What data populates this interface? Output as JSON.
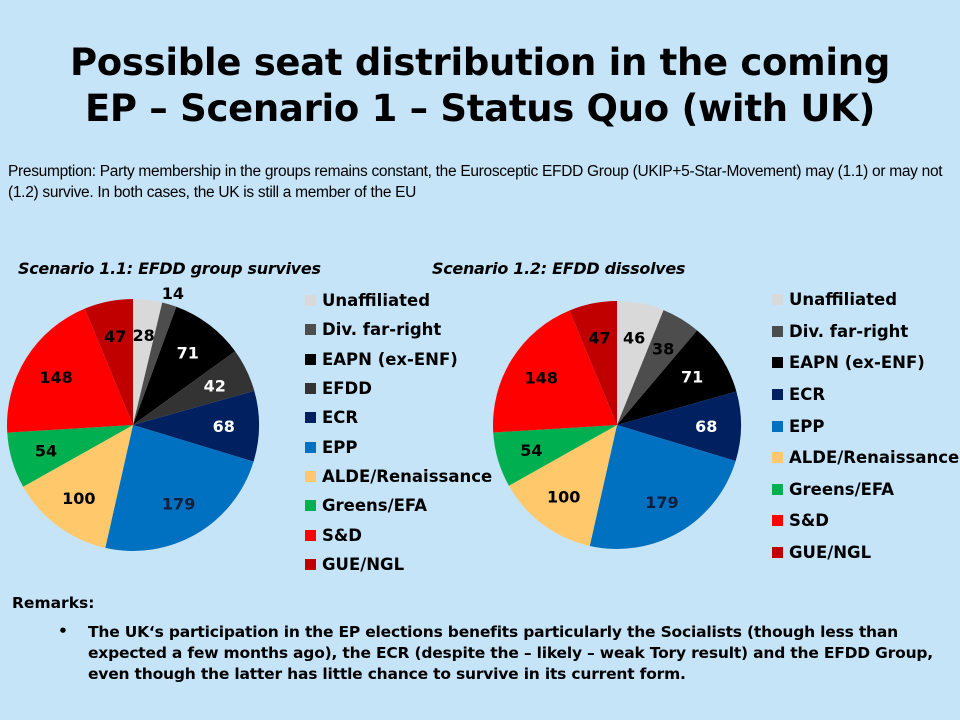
{
  "title": [
    "Possible seat distribution in the coming",
    "EP – Scenario 1 – Status Quo (with UK)"
  ],
  "presumption": "Presumption: Party membership in the groups remains constant, the Eurosceptic EFDD Group (UKIP+5-Star-Movement) may (1.1) or may not (1.2) survive. In both cases, the UK is still a member of the EU",
  "remarks": {
    "heading": "Remarks:",
    "bullet": "•",
    "text": "The UK‘s participation in the EP elections benefits particularly the Socialists (though less than expected a few months ago), the ECR (despite the – likely – weak Tory result) and the EFDD Group, even though the latter has little chance to survive in its current form."
  },
  "chart_data": [
    {
      "type": "pie",
      "title": "Scenario 1.1: EFDD group survives",
      "legend_position": "right",
      "start": "12 o'clock, clockwise",
      "slices": [
        {
          "label": "Unaffiliated",
          "value": 28,
          "color": "#d9d9d9",
          "text_color": "#000000"
        },
        {
          "label": "Div. far-right",
          "value": 14,
          "color": "#4d4d4d",
          "text_color": "#000000"
        },
        {
          "label": "EAPN (ex-ENF)",
          "value": 71,
          "color": "#000000",
          "text_color": "#ffffff"
        },
        {
          "label": "EFDD",
          "value": 42,
          "color": "#333333",
          "text_color": "#ffffff"
        },
        {
          "label": "ECR",
          "value": 68,
          "color": "#002060",
          "text_color": "#ffffff"
        },
        {
          "label": "EPP",
          "value": 179,
          "color": "#0070c0",
          "text_color": "#0d1f3a"
        },
        {
          "label": "ALDE/Renaissance",
          "value": 100,
          "color": "#ffc96b",
          "text_color": "#000000"
        },
        {
          "label": "Greens/EFA",
          "value": 54,
          "color": "#00b050",
          "text_color": "#000000"
        },
        {
          "label": "S&D",
          "value": 148,
          "color": "#ff0000",
          "text_color": "#000000"
        },
        {
          "label": "GUE/NGL",
          "value": 47,
          "color": "#c00000",
          "text_color": "#000000"
        }
      ]
    },
    {
      "type": "pie",
      "title": "Scenario 1.2: EFDD dissolves",
      "legend_position": "right",
      "start": "12 o'clock, clockwise",
      "slices": [
        {
          "label": "Unaffiliated",
          "value": 46,
          "color": "#d9d9d9",
          "text_color": "#000000"
        },
        {
          "label": "Div. far-right",
          "value": 38,
          "color": "#4d4d4d",
          "text_color": "#000000"
        },
        {
          "label": "EAPN (ex-ENF)",
          "value": 71,
          "color": "#000000",
          "text_color": "#ffffff"
        },
        {
          "label": "ECR",
          "value": 68,
          "color": "#002060",
          "text_color": "#ffffff"
        },
        {
          "label": "EPP",
          "value": 179,
          "color": "#0070c0",
          "text_color": "#0d1f3a"
        },
        {
          "label": "ALDE/Renaissance",
          "value": 100,
          "color": "#ffc96b",
          "text_color": "#000000"
        },
        {
          "label": "Greens/EFA",
          "value": 54,
          "color": "#00b050",
          "text_color": "#000000"
        },
        {
          "label": "S&D",
          "value": 148,
          "color": "#ff0000",
          "text_color": "#000000"
        },
        {
          "label": "GUE/NGL",
          "value": 47,
          "color": "#c00000",
          "text_color": "#000000"
        }
      ]
    }
  ]
}
